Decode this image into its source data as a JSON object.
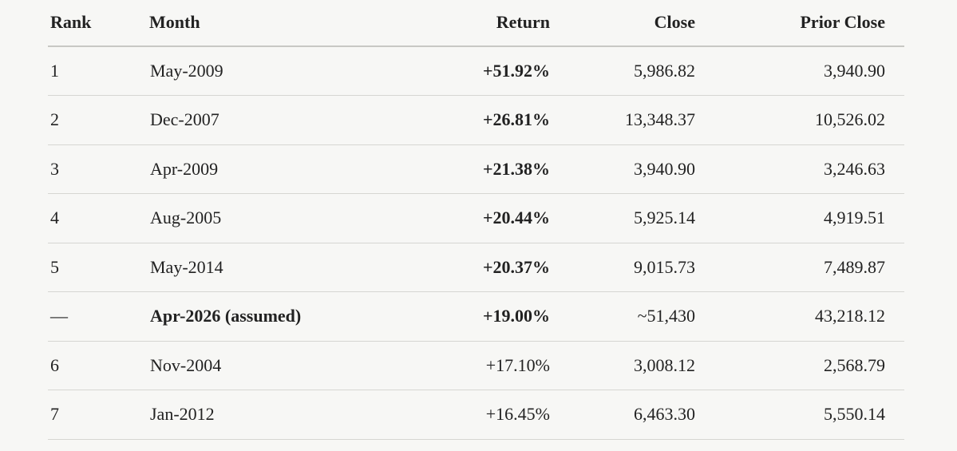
{
  "table": {
    "headers": {
      "rank": "Rank",
      "month": "Month",
      "return": "Return",
      "close": "Close",
      "prior_close": "Prior Close"
    },
    "rows": [
      {
        "rank": "1",
        "month": "May-2009",
        "return": "+51.92%",
        "close": "5,986.82",
        "prior_close": "3,940.90"
      },
      {
        "rank": "2",
        "month": "Dec-2007",
        "return": "+26.81%",
        "close": "13,348.37",
        "prior_close": "10,526.02"
      },
      {
        "rank": "3",
        "month": "Apr-2009",
        "return": "+21.38%",
        "close": "3,940.90",
        "prior_close": "3,246.63"
      },
      {
        "rank": "4",
        "month": "Aug-2005",
        "return": "+20.44%",
        "close": "5,925.14",
        "prior_close": "4,919.51"
      },
      {
        "rank": "5",
        "month": "May-2014",
        "return": "+20.37%",
        "close": "9,015.73",
        "prior_close": "7,489.87"
      },
      {
        "rank": "—",
        "month": "Apr-2026 (assumed)",
        "return": "+19.00%",
        "close": "~51,430",
        "prior_close": "43,218.12"
      },
      {
        "rank": "6",
        "month": "Nov-2004",
        "return": "+17.10%",
        "close": "3,008.12",
        "prior_close": "2,568.79"
      },
      {
        "rank": "7",
        "month": "Jan-2012",
        "return": "+16.45%",
        "close": "6,463.30",
        "prior_close": "5,550.14"
      }
    ]
  }
}
